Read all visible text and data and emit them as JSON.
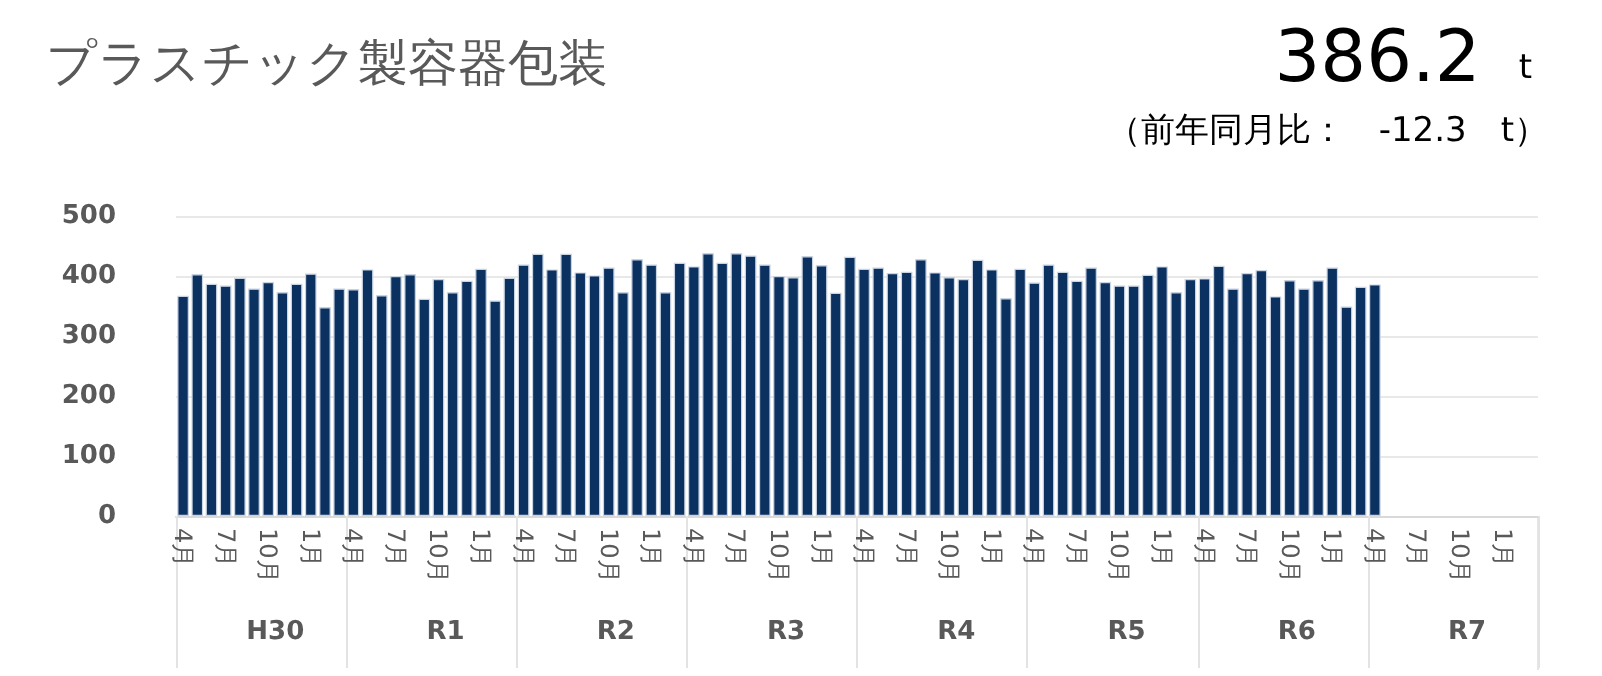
{
  "chart_data": {
    "type": "bar",
    "title": "プラスチック製容器包装",
    "subtitle": "386.2 t",
    "annotations": [
      "（前年同月比：　-12.3　t）",
      "H30",
      "R1",
      "R2",
      "R3",
      "R4",
      "R5",
      "R6",
      "R7"
    ],
    "categories": [
      "4月",
      null,
      null,
      "7月",
      null,
      null,
      "10月",
      null,
      null,
      "1月",
      null,
      null,
      "4月",
      null,
      null,
      "7月",
      null,
      null,
      "10月",
      null,
      null,
      "1月",
      null,
      null,
      "4月",
      null,
      null,
      "7月",
      null,
      null,
      "10月",
      null,
      null,
      "1月",
      null,
      null,
      "4月",
      null,
      null,
      "7月",
      null,
      null,
      "10月",
      null,
      null,
      "1月",
      null,
      null,
      "4月",
      null,
      null,
      "7月",
      null,
      null,
      "10月",
      null,
      null,
      "1月",
      null,
      null,
      "4月",
      null,
      null,
      "7月",
      null,
      null,
      "10月",
      null,
      null,
      "1月",
      null,
      null,
      "4月",
      null,
      null,
      "7月",
      null,
      null,
      "10月",
      null,
      null,
      "1月",
      null,
      null,
      "4月",
      null,
      null,
      "7月",
      null,
      null,
      "10月",
      null,
      null,
      "1月",
      null,
      null
    ],
    "values": [
      367,
      403,
      387,
      384,
      397,
      379,
      390,
      373,
      387,
      404,
      348,
      379,
      378,
      411,
      368,
      400,
      403,
      362,
      395,
      373,
      392,
      412,
      359,
      397,
      419,
      437,
      411,
      437,
      406,
      401,
      414,
      373,
      428,
      419,
      373,
      422,
      416,
      438,
      422,
      438,
      434,
      419,
      400,
      398,
      433,
      418,
      372,
      432,
      412,
      414,
      405,
      407,
      428,
      406,
      398,
      395,
      427,
      411,
      363,
      412,
      389,
      419,
      407,
      392,
      414,
      390,
      384,
      384,
      402,
      416,
      373,
      395,
      396,
      417,
      379,
      405,
      410,
      366,
      393,
      379,
      393,
      414,
      349,
      382,
      386,
      null,
      null,
      null,
      null,
      null,
      null,
      null,
      null,
      null,
      null,
      null
    ],
    "color": "#0b3160",
    "ylim": [
      0,
      500
    ],
    "yticks": [
      0,
      100,
      200,
      300,
      400,
      500
    ],
    "grid": "y"
  }
}
